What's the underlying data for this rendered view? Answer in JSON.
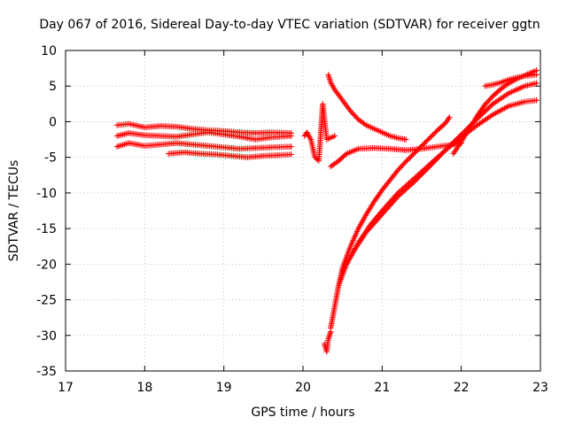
{
  "chart_data": {
    "type": "scatter",
    "title": "Day 067 of 2016, Sidereal Day-to-day VTEC variation (SDTVAR) for receiver ggtn",
    "xlabel": "GPS time / hours",
    "ylabel": "SDTVAR / TECUs",
    "xlim": [
      17,
      23
    ],
    "ylim": [
      -35,
      10
    ],
    "xticks": [
      "17",
      "18",
      "19",
      "20",
      "21",
      "22",
      "23"
    ],
    "yticks": [
      "10",
      "5",
      "0",
      "-5",
      "-10",
      "-15",
      "-20",
      "-25",
      "-30",
      "-35"
    ],
    "grid": true,
    "marker": "+",
    "color": "#ff0000",
    "series": [
      {
        "x": [
          17.65,
          17.8,
          18.0,
          18.2,
          18.4,
          18.6,
          18.8,
          19.0,
          19.2,
          19.4,
          19.6,
          19.85
        ],
        "y": [
          -0.5,
          -0.3,
          -0.8,
          -0.6,
          -0.7,
          -1.0,
          -1.2,
          -1.3,
          -1.5,
          -1.6,
          -1.5,
          -1.6
        ]
      },
      {
        "x": [
          17.65,
          17.8,
          18.0,
          18.2,
          18.4,
          18.6,
          18.8,
          19.0,
          19.2,
          19.4,
          19.6,
          19.85
        ],
        "y": [
          -2.0,
          -1.6,
          -1.9,
          -2.0,
          -2.1,
          -1.8,
          -1.5,
          -1.8,
          -2.1,
          -2.5,
          -2.2,
          -2.0
        ]
      },
      {
        "x": [
          17.65,
          17.8,
          18.0,
          18.2,
          18.4,
          18.6,
          18.8,
          19.0,
          19.2,
          19.4,
          19.6,
          19.85
        ],
        "y": [
          -3.5,
          -3.0,
          -3.4,
          -3.2,
          -3.0,
          -3.2,
          -3.4,
          -3.6,
          -3.8,
          -3.7,
          -3.6,
          -3.5
        ]
      },
      {
        "x": [
          18.3,
          18.5,
          18.7,
          18.9,
          19.1,
          19.3,
          19.5,
          19.7,
          19.85
        ],
        "y": [
          -4.5,
          -4.3,
          -4.5,
          -4.6,
          -4.8,
          -5.0,
          -4.8,
          -4.7,
          -4.6
        ]
      },
      {
        "x": [
          20.27,
          20.3,
          20.32,
          20.35
        ],
        "y": [
          -31.2,
          -32.3,
          -30.5,
          -29.5
        ]
      },
      {
        "x": [
          20.35,
          20.4,
          20.45,
          20.5,
          20.55,
          20.6,
          20.7,
          20.8,
          20.9,
          21.0,
          21.1,
          21.2,
          21.3,
          21.4,
          21.5,
          21.6,
          21.7,
          21.8,
          21.85
        ],
        "y": [
          -29.0,
          -26.0,
          -23.0,
          -20.5,
          -19.0,
          -17.5,
          -15.0,
          -13.0,
          -11.2,
          -9.6,
          -8.2,
          -6.8,
          -5.6,
          -4.5,
          -3.4,
          -2.3,
          -1.2,
          -0.2,
          0.6
        ]
      },
      {
        "x": [
          20.45,
          20.55,
          20.7,
          20.85,
          21.0,
          21.2,
          21.4,
          21.6,
          21.8,
          22.0,
          22.2,
          22.4,
          22.6,
          22.8,
          22.95
        ],
        "y": [
          -23.0,
          -20.0,
          -17.0,
          -14.5,
          -12.5,
          -10.0,
          -8.0,
          -6.0,
          -4.0,
          -2.2,
          -0.5,
          1.0,
          2.2,
          2.8,
          3.0
        ]
      },
      {
        "x": [
          20.5,
          20.65,
          20.8,
          21.0,
          21.2,
          21.4,
          21.6,
          21.8,
          22.0,
          22.2,
          22.4,
          22.6,
          22.8,
          22.95
        ],
        "y": [
          -21.0,
          -18.0,
          -15.5,
          -13.0,
          -10.5,
          -8.5,
          -6.3,
          -4.0,
          -1.8,
          0.4,
          2.5,
          4.0,
          5.0,
          5.4
        ]
      },
      {
        "x": [
          20.32,
          20.35,
          20.4,
          20.5,
          20.6,
          20.7,
          20.8,
          20.9,
          21.0,
          21.1,
          21.2,
          21.3
        ],
        "y": [
          6.6,
          5.5,
          4.5,
          3.0,
          1.5,
          0.3,
          -0.5,
          -1.0,
          -1.5,
          -2.0,
          -2.3,
          -2.5
        ]
      },
      {
        "x": [
          20.35,
          20.45,
          20.55,
          20.7,
          20.9,
          21.1,
          21.3,
          21.5,
          21.7,
          21.9,
          22.0
        ],
        "y": [
          -6.3,
          -5.5,
          -4.5,
          -3.8,
          -3.7,
          -3.8,
          -4.0,
          -3.8,
          -3.5,
          -3.2,
          -3.0
        ]
      },
      {
        "x": [
          21.9,
          22.0,
          22.1,
          22.2,
          22.3,
          22.4,
          22.5,
          22.6,
          22.7,
          22.8,
          22.95
        ],
        "y": [
          -4.5,
          -2.8,
          -1.0,
          0.8,
          2.4,
          3.6,
          4.6,
          5.4,
          6.0,
          6.5,
          7.2
        ]
      },
      {
        "x": [
          22.3,
          22.4,
          22.5,
          22.6,
          22.7,
          22.8,
          22.95
        ],
        "y": [
          5.0,
          5.2,
          5.5,
          5.9,
          6.2,
          6.4,
          6.6
        ]
      },
      {
        "x": [
          20.02,
          20.05,
          20.1,
          20.15,
          20.2,
          20.25,
          20.3,
          20.4
        ],
        "y": [
          -2.0,
          -1.5,
          -2.5,
          -5.0,
          -5.5,
          2.5,
          -2.5,
          -2.0
        ]
      }
    ]
  }
}
